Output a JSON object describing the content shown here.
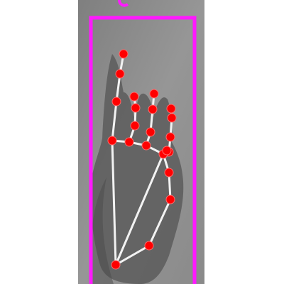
{
  "scene": {
    "description_colors": {
      "wall": "#8f8f8f",
      "hand": "#5e5e5e",
      "bbox": "#ff19ff",
      "landmark": "#ff0000",
      "connection": "#f2f2f2"
    }
  },
  "landmark_count": 21
}
